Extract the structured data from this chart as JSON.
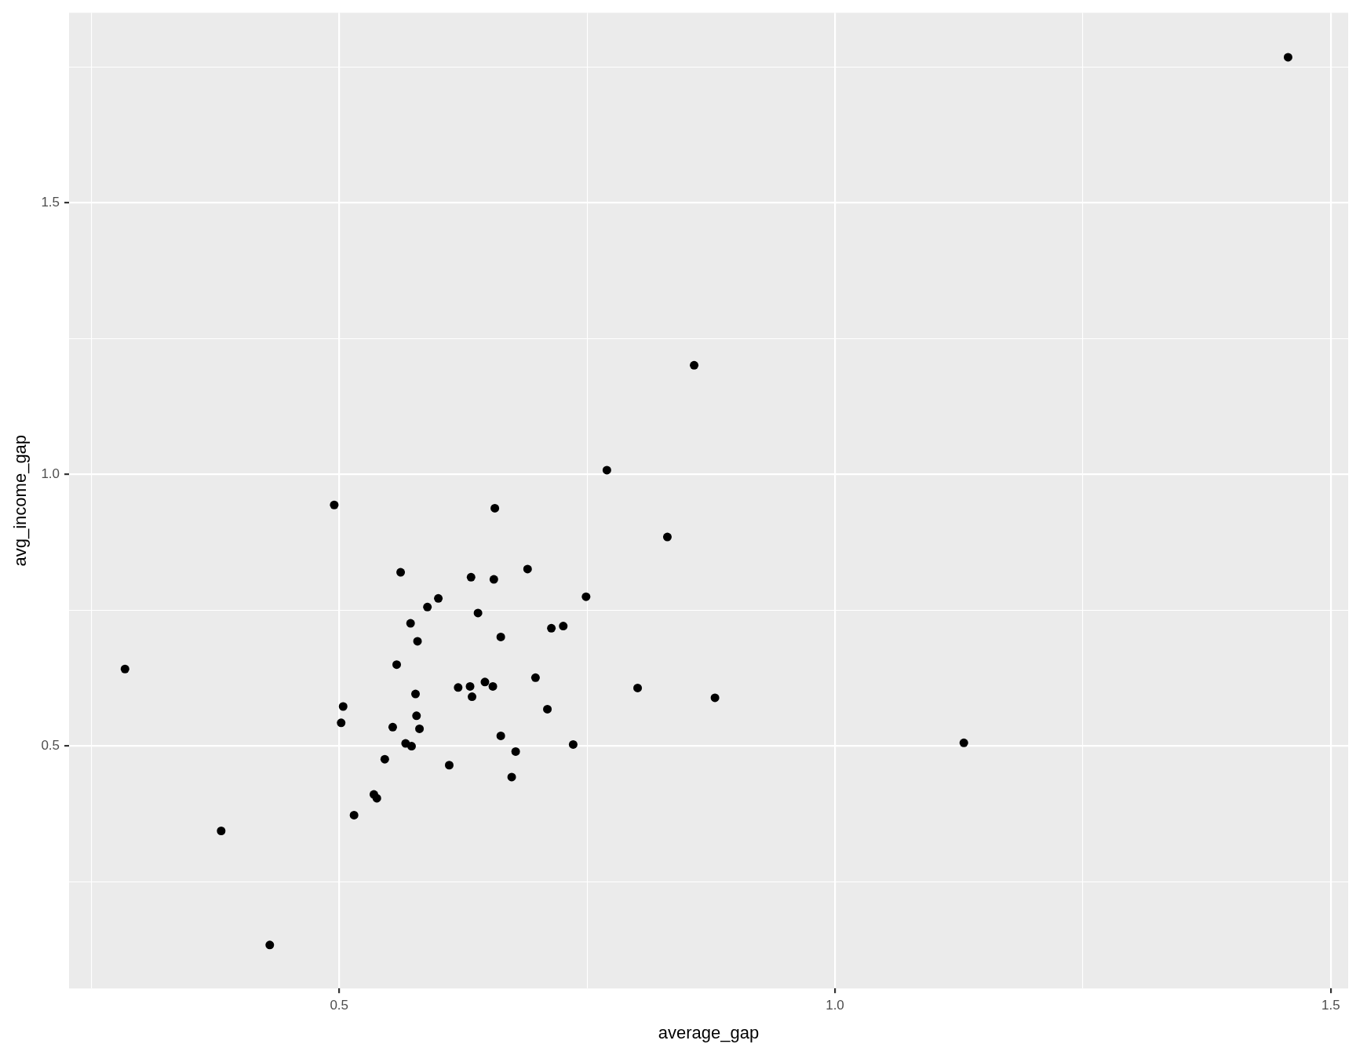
{
  "chart_data": {
    "type": "scatter",
    "xlabel": "average_gap",
    "ylabel": "avg_income_gap",
    "xlim": [
      0.2276,
      1.5176
    ],
    "ylim": [
      0.054,
      1.85
    ],
    "xticks": [
      {
        "value": 0.25,
        "label": null
      },
      0.5,
      {
        "value": 0.75,
        "label": null
      },
      {
        "value": 1,
        "label": "1.0"
      },
      {
        "value": 1.25,
        "label": null
      },
      1.5
    ],
    "yticks": [
      {
        "value": 0.25,
        "label": null
      },
      0.5,
      {
        "value": 0.75,
        "label": null
      },
      {
        "value": 1,
        "label": "1.0"
      },
      {
        "value": 1.25,
        "label": null
      },
      1.5,
      {
        "value": 1.75,
        "label": null
      }
    ],
    "grid": true,
    "legend": false,
    "marker": "circle",
    "series": [
      {
        "color": "#000000",
        "x": [
          1.457,
          0.858,
          0.77,
          0.495,
          0.657,
          0.831,
          0.69,
          0.562,
          0.633,
          0.656,
          0.749,
          0.6,
          0.589,
          0.64,
          0.572,
          0.726,
          0.714,
          0.663,
          0.579,
          0.284,
          0.558,
          0.698,
          0.647,
          0.62,
          0.632,
          0.655,
          0.801,
          0.577,
          0.634,
          0.879,
          0.504,
          0.71,
          0.578,
          0.502,
          0.554,
          0.581,
          0.663,
          0.567,
          0.736,
          1.13,
          0.573,
          0.678,
          0.546,
          0.611,
          0.674,
          0.535,
          0.538,
          0.515,
          0.381,
          0.43
        ],
        "values": [
          1.768,
          1.201,
          1.008,
          0.944,
          0.938,
          0.885,
          0.826,
          0.82,
          0.811,
          0.807,
          0.775,
          0.772,
          0.756,
          0.745,
          0.726,
          0.721,
          0.717,
          0.701,
          0.693,
          0.642,
          0.65,
          0.626,
          0.618,
          0.608,
          0.61,
          0.61,
          0.607,
          0.596,
          0.591,
          0.589,
          0.573,
          0.568,
          0.556,
          0.543,
          0.535,
          0.532,
          0.519,
          0.505,
          0.503,
          0.506,
          0.5,
          0.49,
          0.476,
          0.465,
          0.443,
          0.411,
          0.404,
          0.373,
          0.344,
          0.134
        ]
      }
    ]
  }
}
